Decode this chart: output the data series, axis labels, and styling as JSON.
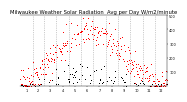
{
  "title": "Milwaukee Weather Solar Radiation",
  "subtitle": "Avg per Day W/m2/minute",
  "ylim": [
    0,
    500
  ],
  "yticks": [
    100,
    200,
    300,
    400,
    500
  ],
  "background_color": "#ffffff",
  "dot_color_main": "#ff0000",
  "dot_color_secondary": "#000000",
  "grid_color": "#999999",
  "title_fontsize": 3.8,
  "tick_fontsize": 2.5,
  "x_month_labels": [
    "1",
    "2",
    "3",
    "4",
    "5",
    "6",
    "7",
    "8",
    "9",
    "10",
    "11",
    "12",
    "1",
    "2",
    "3"
  ],
  "seed": 42
}
